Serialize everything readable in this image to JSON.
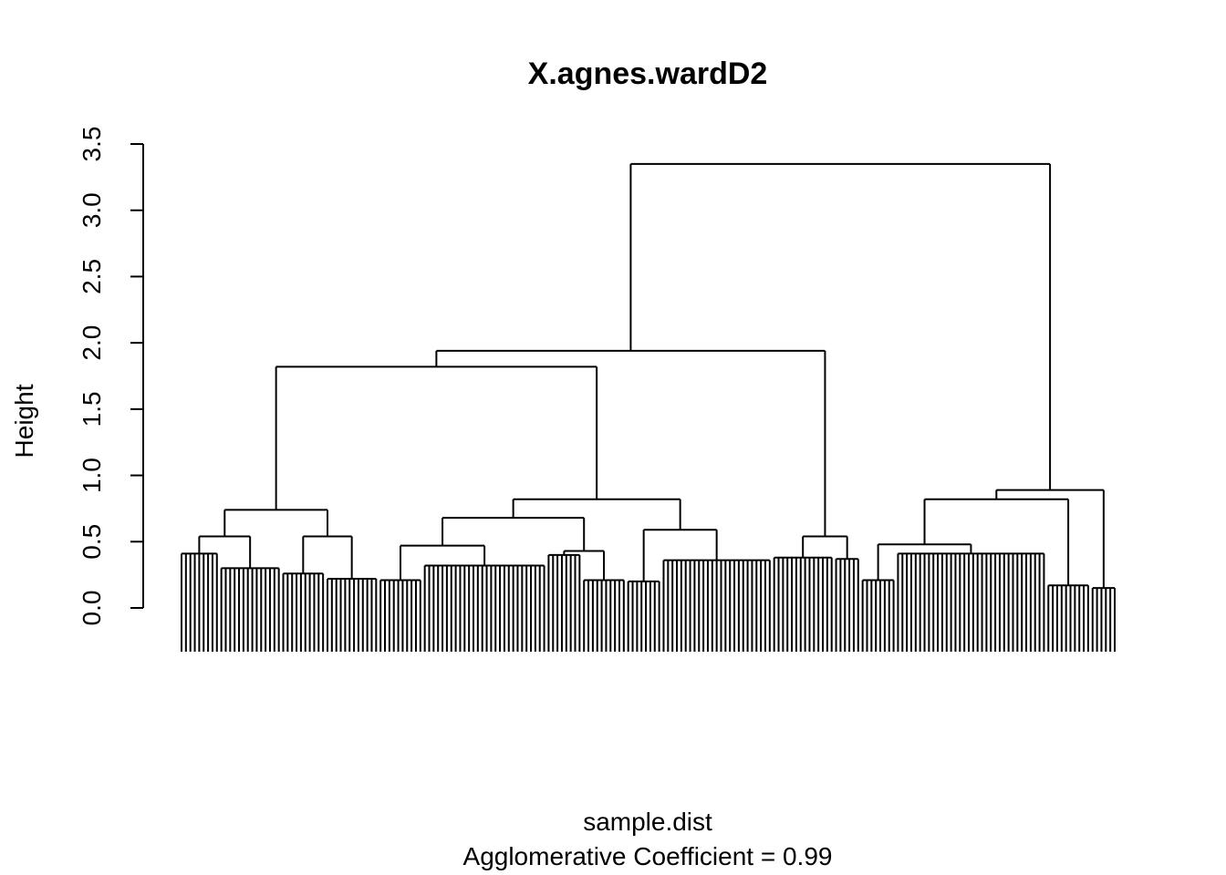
{
  "chart_data": {
    "type": "dendrogram",
    "title": "X.agnes.wardD2",
    "ylabel": "Height",
    "xlabel": "sample.dist",
    "coefficient_label": "Agglomerative Coefficient = ",
    "coefficient": 0.99,
    "color": "#000000",
    "ylim": [
      0,
      3.5
    ],
    "yticks": [
      {
        "value": 0,
        "label": "0.0"
      },
      0.5,
      {
        "value": 1,
        "label": "1.0"
      },
      1.5,
      {
        "value": 2,
        "label": "2.0"
      },
      2.5,
      {
        "value": 3,
        "label": "3.0"
      },
      3.5
    ],
    "tree": {
      "height": 3.35,
      "children": [
        {
          "height": 1.94,
          "children": [
            {
              "height": 1.82,
              "children": [
                {
                  "height": 0.74,
                  "children": [
                    {
                      "height": 0.54,
                      "children": [
                        {
                          "height": 0.41,
                          "leaves": 9
                        },
                        {
                          "height": 0.3,
                          "leaves": 14
                        }
                      ]
                    },
                    {
                      "height": 0.54,
                      "children": [
                        {
                          "height": 0.26,
                          "leaves": 10
                        },
                        {
                          "height": 0.22,
                          "leaves": 12
                        }
                      ]
                    }
                  ]
                },
                {
                  "height": 0.82,
                  "children": [
                    {
                      "height": 0.68,
                      "children": [
                        {
                          "height": 0.47,
                          "children": [
                            {
                              "height": 0.21,
                              "leaves": 10
                            },
                            {
                              "height": 0.32,
                              "leaves": 28
                            }
                          ]
                        },
                        {
                          "height": 0.43,
                          "children": [
                            {
                              "height": 0.4,
                              "leaves": 8
                            },
                            {
                              "height": 0.21,
                              "leaves": 10
                            }
                          ]
                        }
                      ]
                    },
                    {
                      "height": 0.59,
                      "children": [
                        {
                          "height": 0.2,
                          "leaves": 8
                        },
                        {
                          "height": 0.36,
                          "leaves": 25
                        }
                      ]
                    }
                  ]
                }
              ]
            },
            {
              "height": 0.54,
              "children": [
                {
                  "height": 0.38,
                  "leaves": 14
                },
                {
                  "height": 0.37,
                  "leaves": 6
                }
              ]
            }
          ]
        },
        {
          "height": 0.89,
          "children": [
            {
              "height": 0.82,
              "children": [
                {
                  "height": 0.48,
                  "children": [
                    {
                      "height": 0.21,
                      "leaves": 8
                    },
                    {
                      "height": 0.41,
                      "leaves": 34
                    }
                  ]
                },
                {
                  "height": 0.17,
                  "leaves": 10
                }
              ]
            },
            {
              "height": 0.15,
              "leaves": 6
            }
          ]
        }
      ]
    }
  }
}
